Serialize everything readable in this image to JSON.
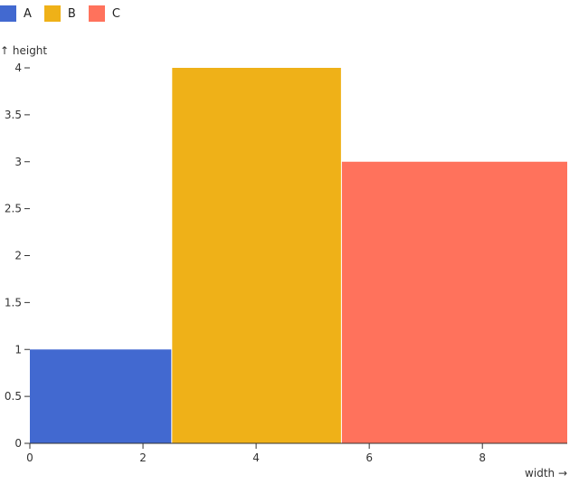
{
  "chart_data": {
    "type": "bar",
    "variable_width": true,
    "xlabel": "width →",
    "ylabel": "↑ height",
    "xlim": [
      0,
      9.5
    ],
    "ylim": [
      0,
      4
    ],
    "xticks": [
      0,
      2,
      4,
      6,
      8
    ],
    "yticks": [
      0,
      0.5,
      1,
      1.5,
      2,
      2.5,
      3,
      3.5,
      4
    ],
    "grid": false,
    "legend_placement": "top-left",
    "series": [
      {
        "name": "A",
        "x1": 0,
        "x2": 2.5,
        "value": 1,
        "color": "#4269d0"
      },
      {
        "name": "B",
        "x1": 2.5,
        "x2": 5.5,
        "value": 4,
        "color": "#efb118"
      },
      {
        "name": "C",
        "x1": 5.5,
        "x2": 9.5,
        "value": 3,
        "color": "#ff725c"
      }
    ]
  }
}
